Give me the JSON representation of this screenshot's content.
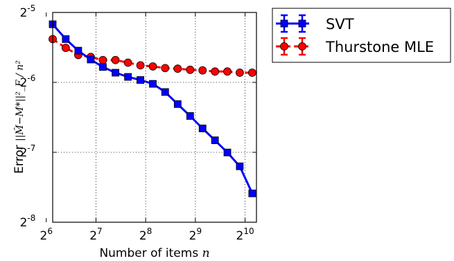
{
  "chart_data": {
    "type": "line",
    "xlabel": "Number of items",
    "xlabel_var": "n",
    "ylabel_prefix": "Error",
    "ylabel_math": "||M̂−M*||²_F / n²",
    "x_scale": "log2",
    "y_scale": "log2",
    "xlim": [
      70,
      1200
    ],
    "ylim": [
      0.00390625,
      0.03125
    ],
    "grid": true,
    "grid_style": "dotted",
    "legend_position": "outside-right",
    "x_ticks": [
      {
        "base": "2",
        "exp": "6",
        "value": 64
      },
      {
        "base": "2",
        "exp": "7",
        "value": 128
      },
      {
        "base": "2",
        "exp": "8",
        "value": 256
      },
      {
        "base": "2",
        "exp": "9",
        "value": 512
      },
      {
        "base": "2",
        "exp": "10",
        "value": 1024
      }
    ],
    "y_ticks": [
      {
        "base": "2",
        "exp": "-5",
        "value": 0.03125
      },
      {
        "base": "2",
        "exp": "-6",
        "value": 0.015625
      },
      {
        "base": "2",
        "exp": "-7",
        "value": 0.0078125
      },
      {
        "base": "2",
        "exp": "-8",
        "value": 0.00390625
      }
    ],
    "x": [
      70,
      84,
      100,
      119,
      141,
      168,
      200,
      238,
      283,
      336,
      400,
      476,
      566,
      673,
      800,
      951,
      1131
    ],
    "series": [
      {
        "name": "SVT",
        "color": "#0000ff",
        "marker": "square",
        "line": "solid",
        "values": [
          0.0278,
          0.024,
          0.0214,
          0.0196,
          0.0182,
          0.0172,
          0.0165,
          0.016,
          0.0154,
          0.0142,
          0.0126,
          0.0112,
          0.0099,
          0.0088,
          0.0078,
          0.0068,
          0.0052
        ]
      },
      {
        "name": "Thurstone MLE",
        "color": "#ff0000",
        "marker": "circle",
        "line": "dashed",
        "values": [
          0.024,
          0.022,
          0.0205,
          0.0201,
          0.0195,
          0.0195,
          0.019,
          0.0185,
          0.0183,
          0.018,
          0.0179,
          0.0177,
          0.0176,
          0.0174,
          0.0174,
          0.0172,
          0.0172
        ]
      }
    ]
  }
}
